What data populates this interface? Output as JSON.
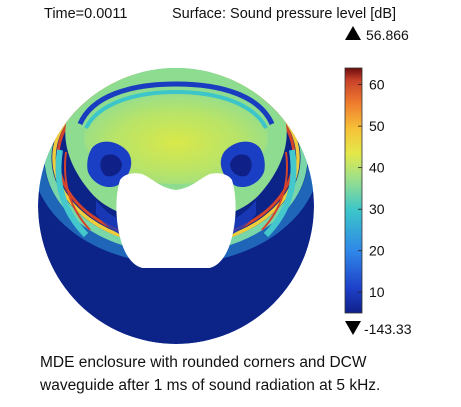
{
  "header": {
    "time_label": "Time=0.0011",
    "surface_label": "Surface: Sound pressure level [dB]"
  },
  "colorbar": {
    "max_value": "56.866",
    "min_value": "-143.33",
    "ticks": [
      "60",
      "50",
      "40",
      "30",
      "20",
      "10"
    ],
    "tick_values": [
      60,
      50,
      40,
      30,
      20,
      10
    ],
    "range": [
      5,
      64
    ],
    "max_marker_icon": "triangle-up-icon",
    "min_marker_icon": "triangle-down-icon",
    "colors": [
      "#6a0d0d",
      "#c8412a",
      "#ee7a2e",
      "#f6c338",
      "#e3e84a",
      "#9ee08a",
      "#3cc6c9",
      "#2f86e8",
      "#1e40c8",
      "#0f2088"
    ]
  },
  "field": {
    "background_color": "#0c2388",
    "enclosure_color": "#ffffff"
  },
  "caption": {
    "line1": "MDE enclosure with rounded corners and DCW",
    "line2": "waveguide after 1 ms of sound radiation at 5 kHz."
  }
}
